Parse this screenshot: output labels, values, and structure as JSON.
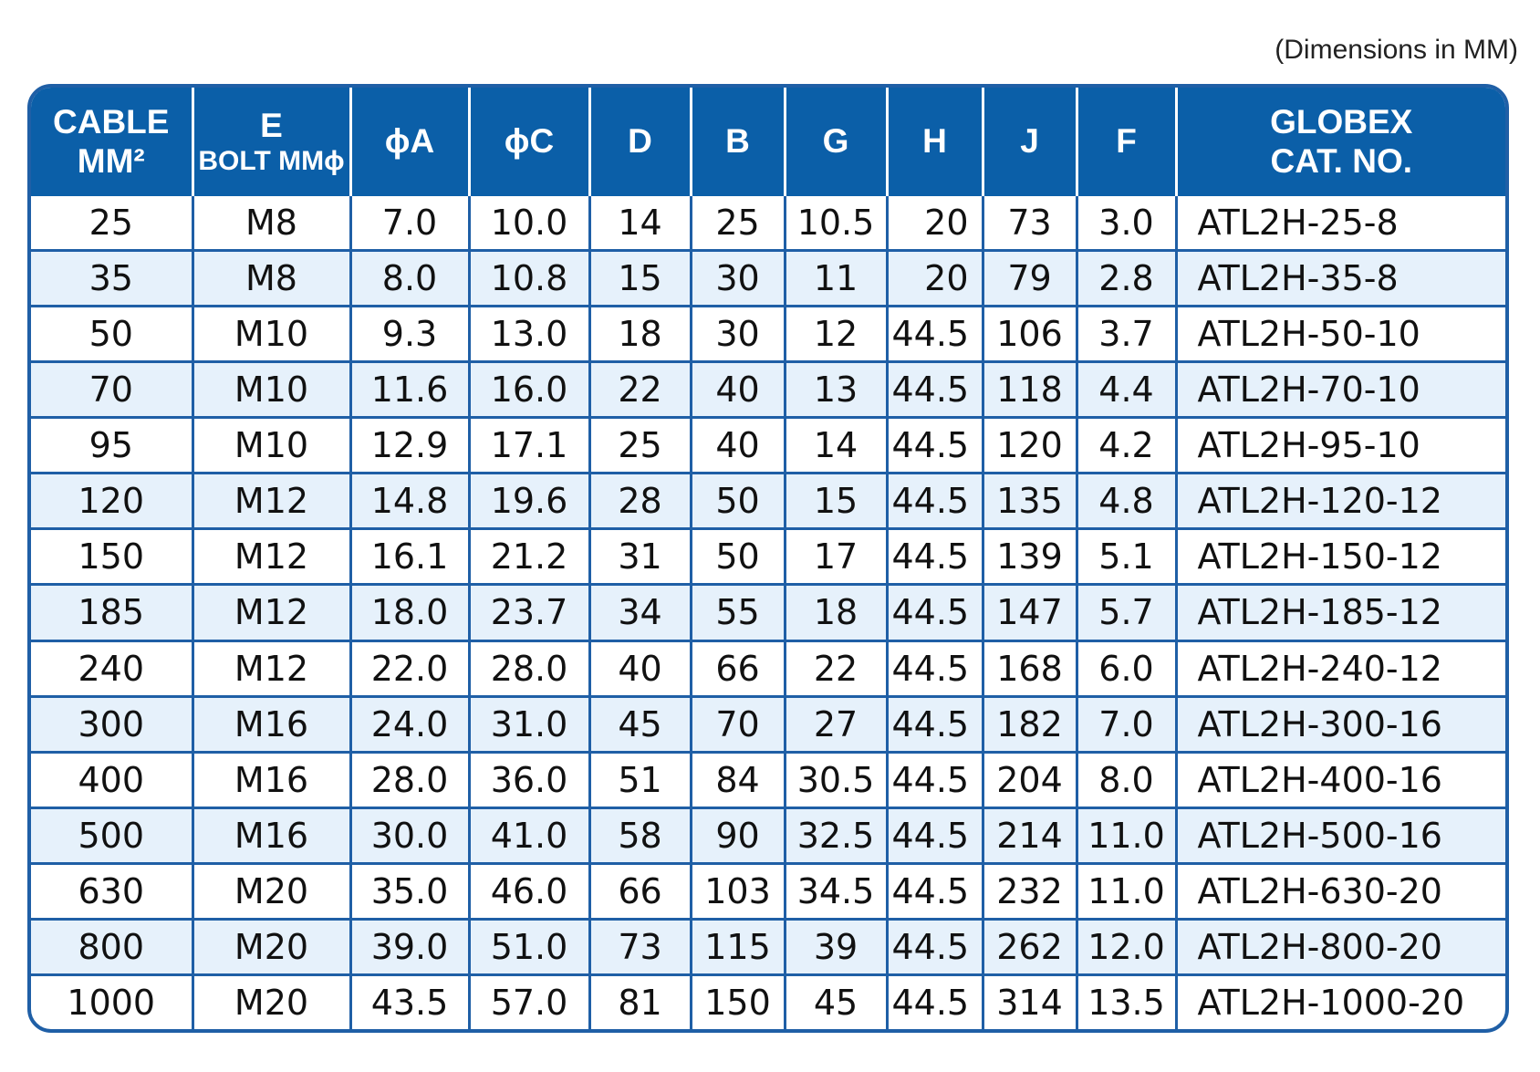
{
  "note": "(Dimensions in MM)",
  "headers": {
    "cable_line1": "CABLE",
    "cable_line2": "MM²",
    "e_line1": "E",
    "e_line2": "BOLT MMϕ",
    "a": "ϕA",
    "c": "ϕC",
    "d": "D",
    "b": "B",
    "g": "G",
    "h": "H",
    "j": "J",
    "f": "F",
    "cat_line1": "GLOBEX",
    "cat_line2": "CAT. NO."
  },
  "rows": [
    {
      "cable": "25",
      "e": "M8",
      "a": "7.0",
      "c": "10.0",
      "d": "14",
      "b": "25",
      "g": "10.5",
      "h": "20",
      "j": "73",
      "f": "3.0",
      "cat": "ATL2H-25-8"
    },
    {
      "cable": "35",
      "e": "M8",
      "a": "8.0",
      "c": "10.8",
      "d": "15",
      "b": "30",
      "g": "11",
      "h": "20",
      "j": "79",
      "f": "2.8",
      "cat": "ATL2H-35-8"
    },
    {
      "cable": "50",
      "e": "M10",
      "a": "9.3",
      "c": "13.0",
      "d": "18",
      "b": "30",
      "g": "12",
      "h": "44.5",
      "j": "106",
      "f": "3.7",
      "cat": "ATL2H-50-10"
    },
    {
      "cable": "70",
      "e": "M10",
      "a": "11.6",
      "c": "16.0",
      "d": "22",
      "b": "40",
      "g": "13",
      "h": "44.5",
      "j": "118",
      "f": "4.4",
      "cat": "ATL2H-70-10"
    },
    {
      "cable": "95",
      "e": "M10",
      "a": "12.9",
      "c": "17.1",
      "d": "25",
      "b": "40",
      "g": "14",
      "h": "44.5",
      "j": "120",
      "f": "4.2",
      "cat": "ATL2H-95-10"
    },
    {
      "cable": "120",
      "e": "M12",
      "a": "14.8",
      "c": "19.6",
      "d": "28",
      "b": "50",
      "g": "15",
      "h": "44.5",
      "j": "135",
      "f": "4.8",
      "cat": "ATL2H-120-12"
    },
    {
      "cable": "150",
      "e": "M12",
      "a": "16.1",
      "c": "21.2",
      "d": "31",
      "b": "50",
      "g": "17",
      "h": "44.5",
      "j": "139",
      "f": "5.1",
      "cat": "ATL2H-150-12"
    },
    {
      "cable": "185",
      "e": "M12",
      "a": "18.0",
      "c": "23.7",
      "d": "34",
      "b": "55",
      "g": "18",
      "h": "44.5",
      "j": "147",
      "f": "5.7",
      "cat": "ATL2H-185-12"
    },
    {
      "cable": "240",
      "e": "M12",
      "a": "22.0",
      "c": "28.0",
      "d": "40",
      "b": "66",
      "g": "22",
      "h": "44.5",
      "j": "168",
      "f": "6.0",
      "cat": "ATL2H-240-12"
    },
    {
      "cable": "300",
      "e": "M16",
      "a": "24.0",
      "c": "31.0",
      "d": "45",
      "b": "70",
      "g": "27",
      "h": "44.5",
      "j": "182",
      "f": "7.0",
      "cat": "ATL2H-300-16"
    },
    {
      "cable": "400",
      "e": "M16",
      "a": "28.0",
      "c": "36.0",
      "d": "51",
      "b": "84",
      "g": "30.5",
      "h": "44.5",
      "j": "204",
      "f": "8.0",
      "cat": "ATL2H-400-16"
    },
    {
      "cable": "500",
      "e": "M16",
      "a": "30.0",
      "c": "41.0",
      "d": "58",
      "b": "90",
      "g": "32.5",
      "h": "44.5",
      "j": "214",
      "f": "11.0",
      "cat": "ATL2H-500-16"
    },
    {
      "cable": "630",
      "e": "M20",
      "a": "35.0",
      "c": "46.0",
      "d": "66",
      "b": "103",
      "g": "34.5",
      "h": "44.5",
      "j": "232",
      "f": "11.0",
      "cat": "ATL2H-630-20"
    },
    {
      "cable": "800",
      "e": "M20",
      "a": "39.0",
      "c": "51.0",
      "d": "73",
      "b": "115",
      "g": "39",
      "h": "44.5",
      "j": "262",
      "f": "12.0",
      "cat": "ATL2H-800-20"
    },
    {
      "cable": "1000",
      "e": "M20",
      "a": "43.5",
      "c": "57.0",
      "d": "81",
      "b": "150",
      "g": "45",
      "h": "44.5",
      "j": "314",
      "f": "13.5",
      "cat": "ATL2H-1000-20"
    }
  ],
  "colors": {
    "header_bg": "#0b5fa8",
    "border": "#1f5fa6",
    "stripe": "#e6f1fb"
  }
}
